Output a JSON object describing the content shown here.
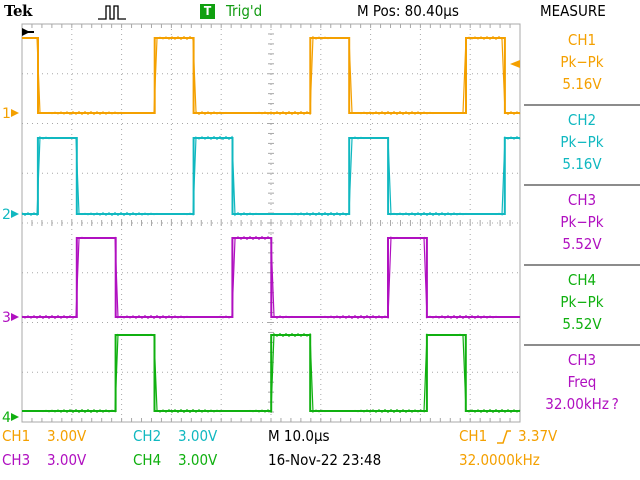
{
  "header": {
    "logo": "Tek",
    "trigger_badge": "T",
    "trigger_status": "Trig'd",
    "position": "M Pos: 80.40µs",
    "menu_title": "MEASURE"
  },
  "colors": {
    "ch1": "#f4a000",
    "ch2": "#10b8c0",
    "ch3": "#b010c0",
    "ch4": "#10b010",
    "grid": "#a8a8a8"
  },
  "channel_markers": [
    "1",
    "2",
    "3",
    "4"
  ],
  "waveform_data": {
    "period_us": 31.25,
    "duty_cycle": 0.25,
    "phase_step_us": 7.8,
    "ch1_first_rise_us": -4.6
  },
  "measurements": [
    {
      "channel": "CH1",
      "type": "Pk−Pk",
      "value": "5.16V",
      "color": "#f4a000"
    },
    {
      "channel": "CH2",
      "type": "Pk−Pk",
      "value": "5.16V",
      "color": "#10b8c0"
    },
    {
      "channel": "CH3",
      "type": "Pk−Pk",
      "value": "5.52V",
      "color": "#b010c0"
    },
    {
      "channel": "CH4",
      "type": "Pk−Pk",
      "value": "5.52V",
      "color": "#10b010"
    },
    {
      "channel": "CH3",
      "type": "Freq",
      "value": "32.00kHz ?",
      "color": "#b010c0"
    }
  ],
  "footer": {
    "ch1_label": "CH1",
    "ch1_scale": "3.00V",
    "ch2_label": "CH2",
    "ch2_scale": "3.00V",
    "ch3_label": "CH3",
    "ch3_scale": "3.00V",
    "ch4_label": "CH4",
    "ch4_scale": "3.00V",
    "timebase": "M 10.0µs",
    "date_time": "16-Nov-22 23:48",
    "trigger_source": "CH1",
    "trigger_slope_icon": "rising-edge-icon",
    "trigger_level": "3.37V",
    "frequency": "32.0000kHz"
  }
}
